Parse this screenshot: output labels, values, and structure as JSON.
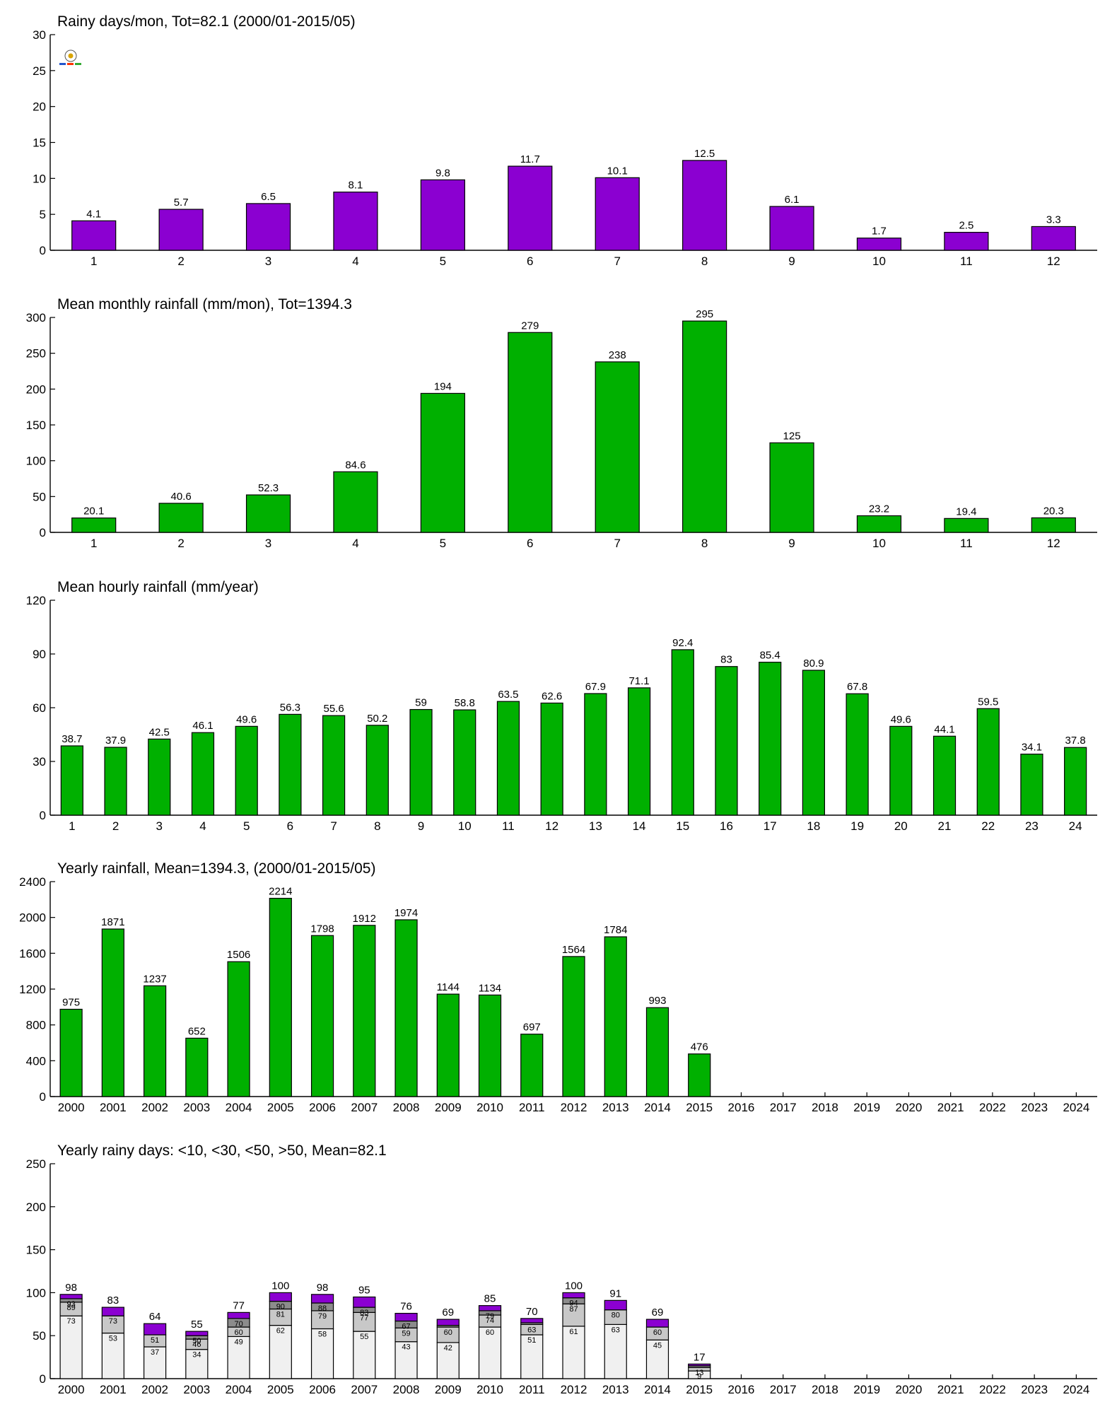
{
  "chart_data": [
    {
      "type": "bar",
      "title": "Rainy days/mon, Tot=82.1 (2000/01-2015/05)",
      "categories": [
        "1",
        "2",
        "3",
        "4",
        "5",
        "6",
        "7",
        "8",
        "9",
        "10",
        "11",
        "12"
      ],
      "values": [
        4.1,
        5.7,
        6.5,
        8.1,
        9.8,
        11.7,
        10.1,
        12.5,
        6.1,
        1.7,
        2.5,
        3.3
      ],
      "data_labels": [
        "4.1",
        "5.7",
        "6.5",
        "8.1",
        "9.8",
        "11.7",
        "10.1",
        "12.5",
        "6.1",
        "1.7",
        "2.5",
        "3.3"
      ],
      "ylim": [
        0,
        30
      ],
      "yticks": [
        0,
        5,
        10,
        15,
        20,
        25,
        30
      ],
      "color": "#8b00d1",
      "grid": false,
      "logo": "Statistics Lab"
    },
    {
      "type": "bar",
      "title": "Mean monthly rainfall (mm/mon), Tot=1394.3",
      "categories": [
        "1",
        "2",
        "3",
        "4",
        "5",
        "6",
        "7",
        "8",
        "9",
        "10",
        "11",
        "12"
      ],
      "values": [
        20.1,
        40.6,
        52.3,
        84.6,
        194,
        279,
        238,
        295,
        125,
        23.2,
        19.4,
        20.3
      ],
      "data_labels": [
        "20.1",
        "40.6",
        "52.3",
        "84.6",
        "194",
        "279",
        "238",
        "295",
        "125",
        "23.2",
        "19.4",
        "20.3"
      ],
      "ylim": [
        0,
        300
      ],
      "yticks": [
        0,
        50,
        100,
        150,
        200,
        250,
        300
      ],
      "color": "#00b000",
      "grid": false
    },
    {
      "type": "bar",
      "title": "Mean hourly rainfall (mm/year)",
      "categories": [
        "1",
        "2",
        "3",
        "4",
        "5",
        "6",
        "7",
        "8",
        "9",
        "10",
        "11",
        "12",
        "13",
        "14",
        "15",
        "16",
        "17",
        "18",
        "19",
        "20",
        "21",
        "22",
        "23",
        "24"
      ],
      "values": [
        38.7,
        37.9,
        42.5,
        46.1,
        49.6,
        56.3,
        55.6,
        50.2,
        59,
        58.8,
        63.5,
        62.6,
        67.9,
        71.1,
        92.4,
        83,
        85.4,
        80.9,
        67.8,
        49.6,
        44.1,
        59.5,
        34.1,
        37.8
      ],
      "data_labels": [
        "38.7",
        "37.9",
        "42.5",
        "46.1",
        "49.6",
        "56.3",
        "55.6",
        "50.2",
        "59",
        "58.8",
        "63.5",
        "62.6",
        "67.9",
        "71.1",
        "92.4",
        "83",
        "85.4",
        "80.9",
        "67.8",
        "49.6",
        "44.1",
        "59.5",
        "34.1",
        "37.8"
      ],
      "ylim": [
        0,
        120
      ],
      "yticks": [
        0,
        30,
        60,
        90,
        120
      ],
      "color": "#00b000",
      "grid": false
    },
    {
      "type": "bar",
      "title": "Yearly rainfall, Mean=1394.3, (2000/01-2015/05)",
      "categories": [
        "2000",
        "2001",
        "2002",
        "2003",
        "2004",
        "2005",
        "2006",
        "2007",
        "2008",
        "2009",
        "2010",
        "2011",
        "2012",
        "2013",
        "2014",
        "2015",
        "2016",
        "2017",
        "2018",
        "2019",
        "2020",
        "2021",
        "2022",
        "2023",
        "2024"
      ],
      "values": [
        975,
        1871,
        1237,
        652,
        1506,
        2214,
        1798,
        1912,
        1974,
        1144,
        1134,
        697,
        1564,
        1784,
        993,
        476,
        null,
        null,
        null,
        null,
        null,
        null,
        null,
        null,
        null
      ],
      "data_labels": [
        "975",
        "1871",
        "1237",
        "652",
        "1506",
        "2214",
        "1798",
        "1912",
        "1974",
        "1144",
        "1134",
        "697",
        "1564",
        "1784",
        "993",
        "476",
        "",
        "",
        "",
        "",
        "",
        "",
        "",
        "",
        ""
      ],
      "ylim": [
        0,
        2400
      ],
      "yticks": [
        0,
        400,
        800,
        1200,
        1600,
        2000,
        2400
      ],
      "color": "#00b000",
      "grid": false
    },
    {
      "type": "bar",
      "stacked": true,
      "title": "Yearly rainy days: <10, <30, <50, >50, Mean=82.1",
      "categories": [
        "2000",
        "2001",
        "2002",
        "2003",
        "2004",
        "2005",
        "2006",
        "2007",
        "2008",
        "2009",
        "2010",
        "2011",
        "2012",
        "2013",
        "2014",
        "2015",
        "2016",
        "2017",
        "2018",
        "2019",
        "2020",
        "2021",
        "2022",
        "2023",
        "2024"
      ],
      "totals": [
        98,
        83,
        64,
        55,
        77,
        100,
        98,
        95,
        76,
        69,
        85,
        70,
        100,
        91,
        69,
        17,
        null,
        null,
        null,
        null,
        null,
        null,
        null,
        null,
        null
      ],
      "total_labels": [
        "98",
        "83",
        "64",
        "55",
        "77",
        "100",
        "98",
        "95",
        "76",
        "69",
        "85",
        "70",
        "100",
        "91",
        "69",
        "17",
        "",
        "",
        "",
        "",
        "",
        "",
        "",
        "",
        ""
      ],
      "cumulative": {
        "lt10": [
          73,
          53,
          37,
          34,
          49,
          62,
          58,
          55,
          43,
          42,
          60,
          51,
          61,
          63,
          45,
          9
        ],
        "lt30": [
          89,
          73,
          51,
          46,
          60,
          81,
          79,
          77,
          59,
          60,
          74,
          63,
          87,
          80,
          60,
          13
        ],
        "lt50": [
          93,
          73,
          51,
          50,
          70,
          90,
          88,
          83,
          67,
          62,
          79,
          65,
          94,
          80,
          60,
          15
        ]
      },
      "segment_labels": {
        "lt10": [
          "73",
          "53",
          "37",
          "34",
          "49",
          "62",
          "58",
          "55",
          "43",
          "42",
          "60",
          "51",
          "61",
          "63",
          "45",
          "9"
        ],
        "lt30": [
          "89",
          "73",
          "51",
          "46",
          "60",
          "81",
          "79",
          "77",
          "59",
          "60",
          "74",
          "63",
          "87",
          "80",
          "60",
          "13"
        ],
        "lt50": [
          "93",
          "",
          "",
          "50",
          "70",
          "90",
          "88",
          "83",
          "67",
          "",
          "79",
          "",
          "94",
          "",
          "",
          ""
        ]
      },
      "segment_colors": {
        "lt10": "#f0f0f0",
        "lt30": "#c8c8c8",
        "lt50": "#8c8c8c",
        "gt50": "#8b00d1"
      },
      "ylim": [
        0,
        250
      ],
      "yticks": [
        0,
        50,
        100,
        150,
        200,
        250
      ],
      "grid": false
    }
  ]
}
